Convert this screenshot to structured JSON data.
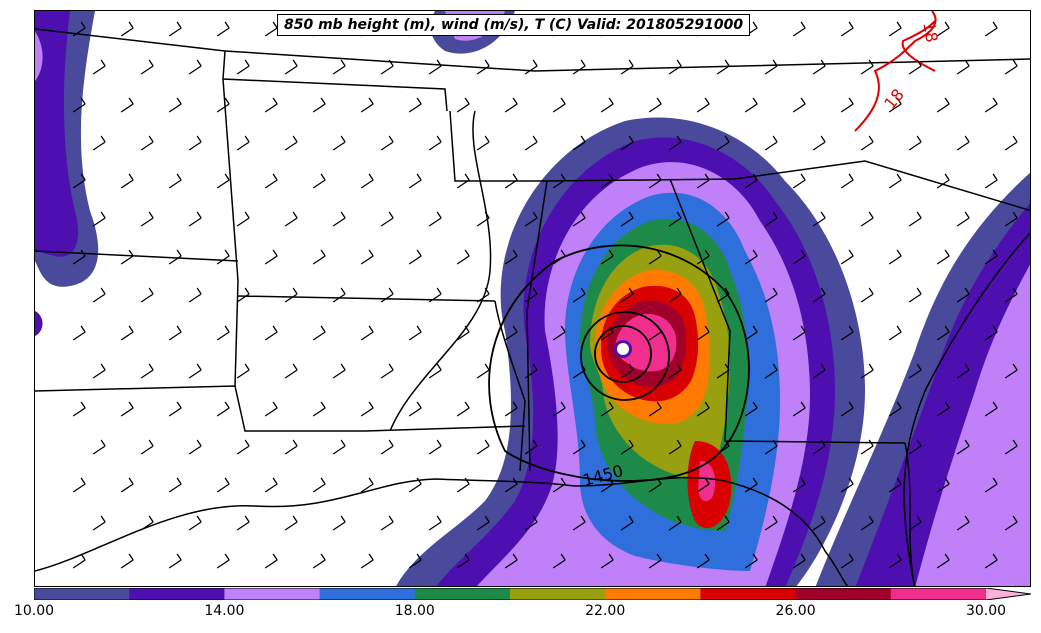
{
  "title": "850 mb height (m), wind (m/s), T (C) Valid: 201805291000",
  "contour_labels": {
    "height": "1450",
    "temp_a": "18",
    "temp_b": "18"
  },
  "colorbar": {
    "tick_labels": [
      "10.00",
      "14.00",
      "18.00",
      "22.00",
      "26.00",
      "30.00"
    ],
    "colors": [
      "#4a4a9c",
      "#4e0fb0",
      "#c080f8",
      "#2e6fdc",
      "#1e8a4a",
      "#98a010",
      "#ff7a00",
      "#d80000",
      "#a0002a",
      "#f02e8e",
      "#ffb0d8"
    ],
    "range": [
      10,
      30
    ],
    "bin_width": 2
  }
}
